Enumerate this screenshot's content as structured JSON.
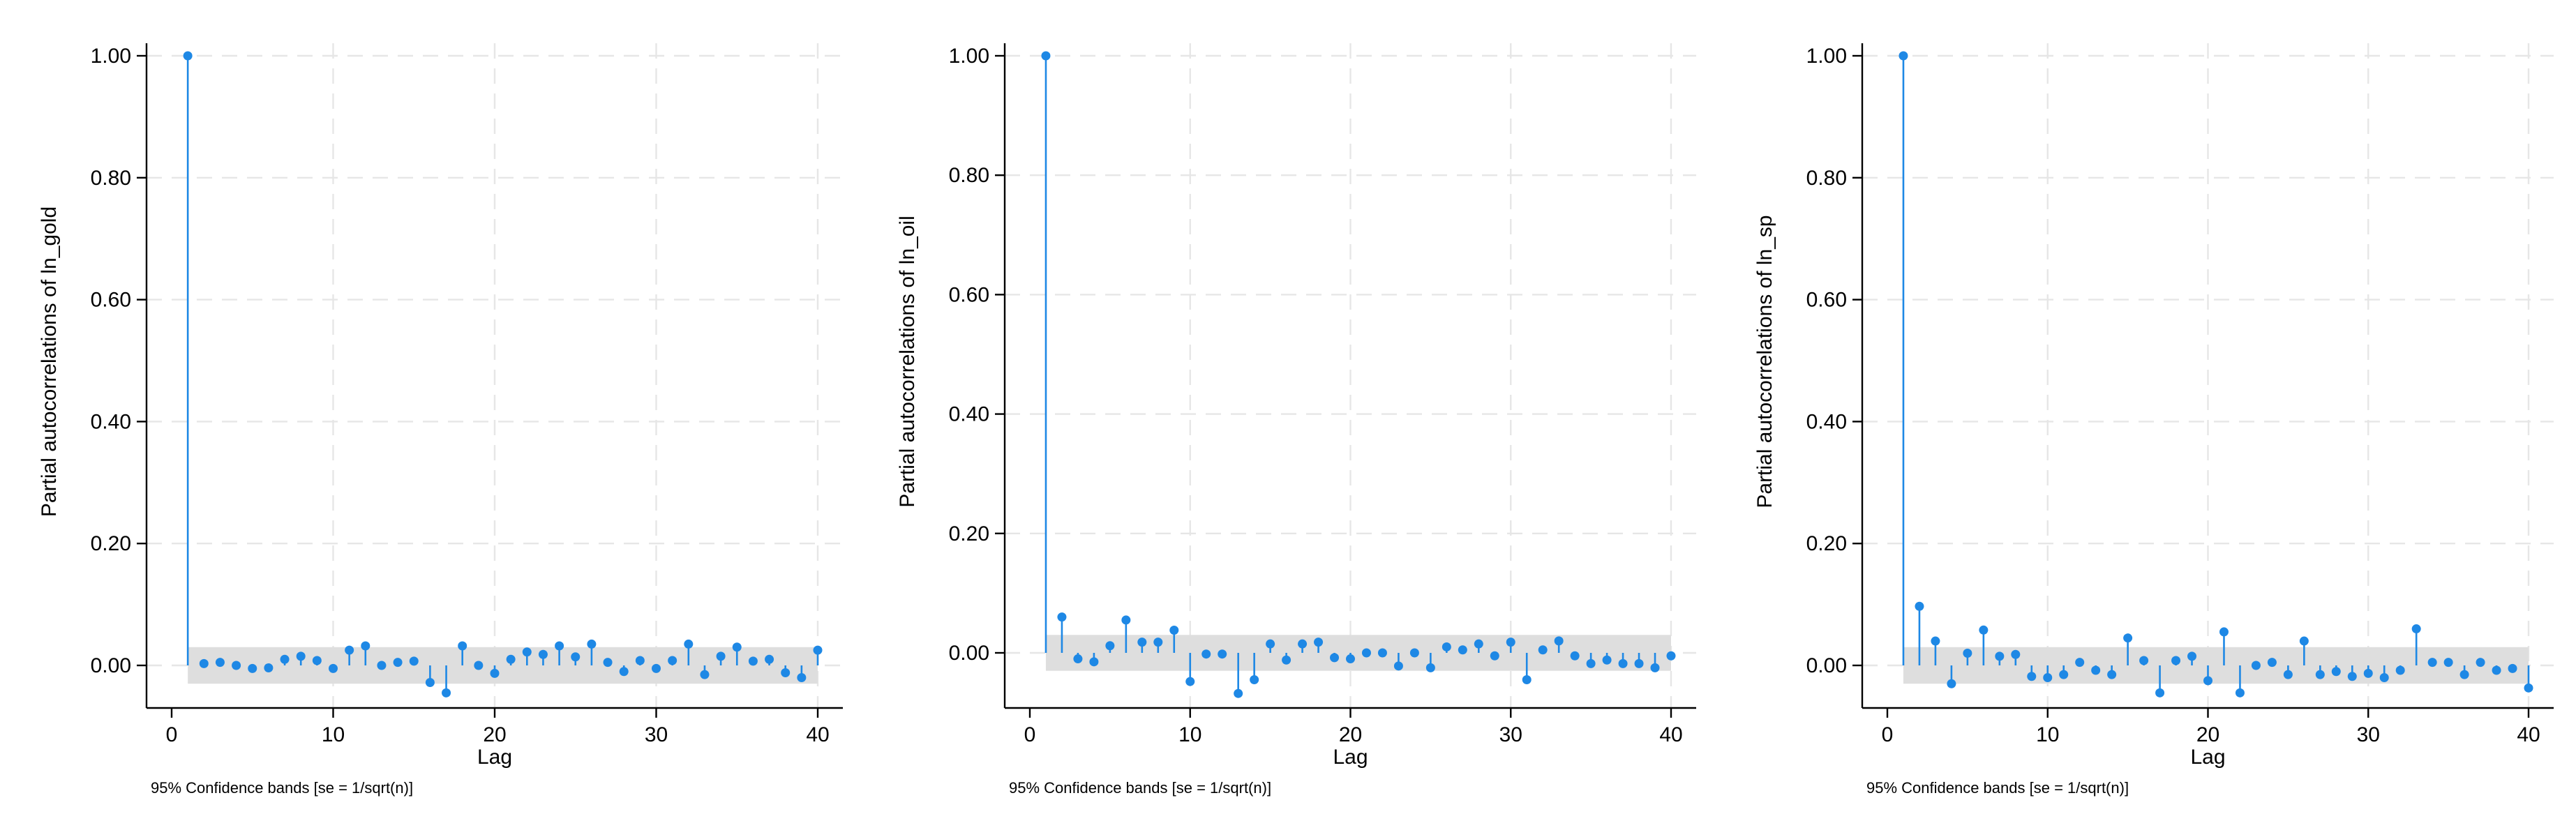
{
  "chart_data": [
    {
      "type": "scatter",
      "style": "stem",
      "ylabel": "Partial autocorrelations of ln_gold",
      "xlabel": "Lag",
      "note": "95% Confidence bands [se = 1/sqrt(n)]",
      "xlim": [
        0,
        40
      ],
      "ylim": [
        -0.06,
        1.0
      ],
      "xticks": [
        0,
        10,
        20,
        30,
        40
      ],
      "yticks": [
        0.0,
        0.2,
        0.4,
        0.6,
        0.8,
        1.0
      ],
      "ytick_labels": [
        "0.00",
        "0.20",
        "0.40",
        "0.60",
        "0.80",
        "1.00"
      ],
      "xtick_labels": [
        "0",
        "10",
        "20",
        "30",
        "40"
      ],
      "grid": true,
      "confidence_band": 0.03,
      "x": [
        1,
        2,
        3,
        4,
        5,
        6,
        7,
        8,
        9,
        10,
        11,
        12,
        13,
        14,
        15,
        16,
        17,
        18,
        19,
        20,
        21,
        22,
        23,
        24,
        25,
        26,
        27,
        28,
        29,
        30,
        31,
        32,
        33,
        34,
        35,
        36,
        37,
        38,
        39,
        40
      ],
      "y": [
        1.0,
        0.003,
        0.005,
        0.0,
        -0.005,
        -0.004,
        0.01,
        0.015,
        0.008,
        -0.005,
        0.025,
        0.032,
        0.0,
        0.005,
        0.007,
        -0.028,
        -0.045,
        0.032,
        0.0,
        -0.013,
        0.01,
        0.022,
        0.018,
        0.032,
        0.014,
        0.035,
        0.005,
        -0.01,
        0.008,
        -0.005,
        0.008,
        0.035,
        -0.015,
        0.015,
        0.03,
        0.007,
        0.01,
        -0.012,
        -0.02,
        0.025
      ]
    },
    {
      "type": "scatter",
      "style": "stem",
      "ylabel": "Partial autocorrelations of ln_oil",
      "xlabel": "Lag",
      "note": "95% Confidence bands [se = 1/sqrt(n)]",
      "xlim": [
        0,
        40
      ],
      "ylim": [
        -0.08,
        1.0
      ],
      "xticks": [
        0,
        10,
        20,
        30,
        40
      ],
      "yticks": [
        0.0,
        0.2,
        0.4,
        0.6,
        0.8,
        1.0
      ],
      "ytick_labels": [
        "0.00",
        "0.20",
        "0.40",
        "0.60",
        "0.80",
        "1.00"
      ],
      "xtick_labels": [
        "0",
        "10",
        "20",
        "30",
        "40"
      ],
      "grid": true,
      "confidence_band": 0.03,
      "x": [
        1,
        2,
        3,
        4,
        5,
        6,
        7,
        8,
        9,
        10,
        11,
        12,
        13,
        14,
        15,
        16,
        17,
        18,
        19,
        20,
        21,
        22,
        23,
        24,
        25,
        26,
        27,
        28,
        29,
        30,
        31,
        32,
        33,
        34,
        35,
        36,
        37,
        38,
        39,
        40
      ],
      "y": [
        1.0,
        0.06,
        -0.01,
        -0.015,
        0.012,
        0.055,
        0.018,
        0.018,
        0.038,
        -0.048,
        -0.002,
        -0.002,
        -0.068,
        -0.045,
        0.015,
        -0.012,
        0.015,
        0.018,
        -0.008,
        -0.01,
        0.0,
        0.0,
        -0.022,
        0.0,
        -0.025,
        0.01,
        0.005,
        0.015,
        -0.005,
        0.018,
        -0.045,
        0.005,
        0.02,
        -0.005,
        -0.018,
        -0.012,
        -0.018,
        -0.018,
        -0.025,
        -0.005
      ]
    },
    {
      "type": "scatter",
      "style": "stem",
      "ylabel": "Partial autocorrelations of ln_sp",
      "xlabel": "Lag",
      "note": "95% Confidence bands [se = 1/sqrt(n)]",
      "xlim": [
        0,
        40
      ],
      "ylim": [
        -0.06,
        1.0
      ],
      "xticks": [
        0,
        10,
        20,
        30,
        40
      ],
      "yticks": [
        0.0,
        0.2,
        0.4,
        0.6,
        0.8,
        1.0
      ],
      "ytick_labels": [
        "0.00",
        "0.20",
        "0.40",
        "0.60",
        "0.80",
        "1.00"
      ],
      "xtick_labels": [
        "0",
        "10",
        "20",
        "30",
        "40"
      ],
      "grid": true,
      "confidence_band": 0.03,
      "x": [
        1,
        2,
        3,
        4,
        5,
        6,
        7,
        8,
        9,
        10,
        11,
        12,
        13,
        14,
        15,
        16,
        17,
        18,
        19,
        20,
        21,
        22,
        23,
        24,
        25,
        26,
        27,
        28,
        29,
        30,
        31,
        32,
        33,
        34,
        35,
        36,
        37,
        38,
        39,
        40
      ],
      "y": [
        1.0,
        0.097,
        0.04,
        -0.03,
        0.02,
        0.058,
        0.015,
        0.018,
        -0.018,
        -0.02,
        -0.015,
        0.005,
        -0.008,
        -0.015,
        0.045,
        0.008,
        -0.045,
        0.008,
        0.015,
        -0.025,
        0.055,
        -0.045,
        0.0,
        0.005,
        -0.015,
        0.04,
        -0.015,
        -0.01,
        -0.018,
        -0.013,
        -0.02,
        -0.008,
        0.06,
        0.005,
        0.005,
        -0.015,
        0.005,
        -0.008,
        -0.005,
        -0.037
      ]
    }
  ],
  "colors": {
    "series": "#1e88e5",
    "band": "#dedede",
    "grid": "#e6e6e6",
    "axis": "#000000"
  }
}
